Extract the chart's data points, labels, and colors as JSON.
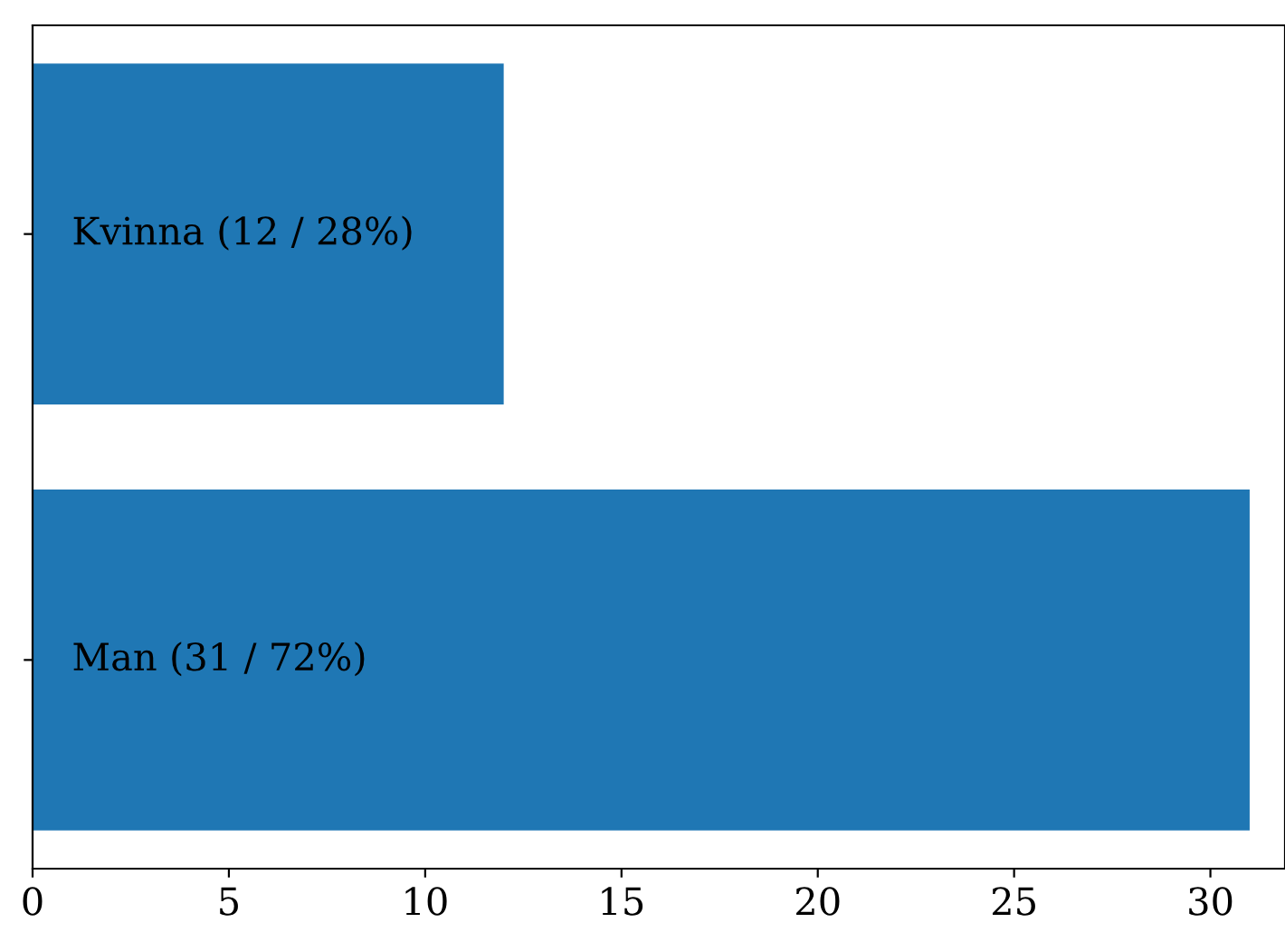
{
  "chart_data": {
    "type": "bar",
    "orientation": "horizontal",
    "categories": [
      null,
      null
    ],
    "values": [
      12,
      31
    ],
    "color": "#1f77b4",
    "value_labels": [
      "Kvinna (12 / 28%)",
      "Man (31 / 72%)"
    ],
    "xlim": [
      0,
      31.9
    ],
    "xticks": [
      0,
      5,
      10,
      15,
      20,
      25,
      30
    ],
    "tick_labels": "x",
    "grid": false,
    "legend": false
  }
}
